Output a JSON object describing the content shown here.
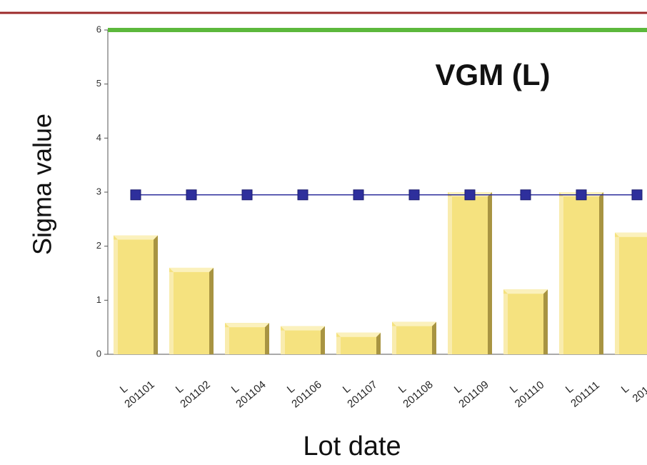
{
  "chart_data": {
    "type": "bar",
    "title": "VGM (L)",
    "x_label": "Lot date",
    "y_label": "Sigma value",
    "categories": [
      [
        "L",
        "201101"
      ],
      [
        "L",
        "201102"
      ],
      [
        "L",
        "201104"
      ],
      [
        "L",
        "201106"
      ],
      [
        "L",
        "201107"
      ],
      [
        "L",
        "201108"
      ],
      [
        "L",
        "201109"
      ],
      [
        "L",
        "201110"
      ],
      [
        "L",
        "201111"
      ],
      [
        "L",
        "201"
      ]
    ],
    "series": [
      {
        "type": "bar",
        "color": "#f5e27f",
        "values": [
          2.2,
          1.6,
          0.58,
          0.52,
          0.4,
          0.6,
          3.0,
          1.2,
          3.0,
          2.25
        ]
      },
      {
        "type": "line",
        "color": "#2e2f9c",
        "values": [
          2.95,
          2.95,
          2.95,
          2.95,
          2.95,
          2.95,
          2.95,
          2.95,
          2.95,
          2.95
        ]
      }
    ],
    "upper_line": {
      "value": 6,
      "color": "#5cb83c"
    },
    "ylim": [
      0,
      6
    ],
    "yticks": [
      0,
      1,
      2,
      3,
      4,
      5,
      6
    ]
  }
}
